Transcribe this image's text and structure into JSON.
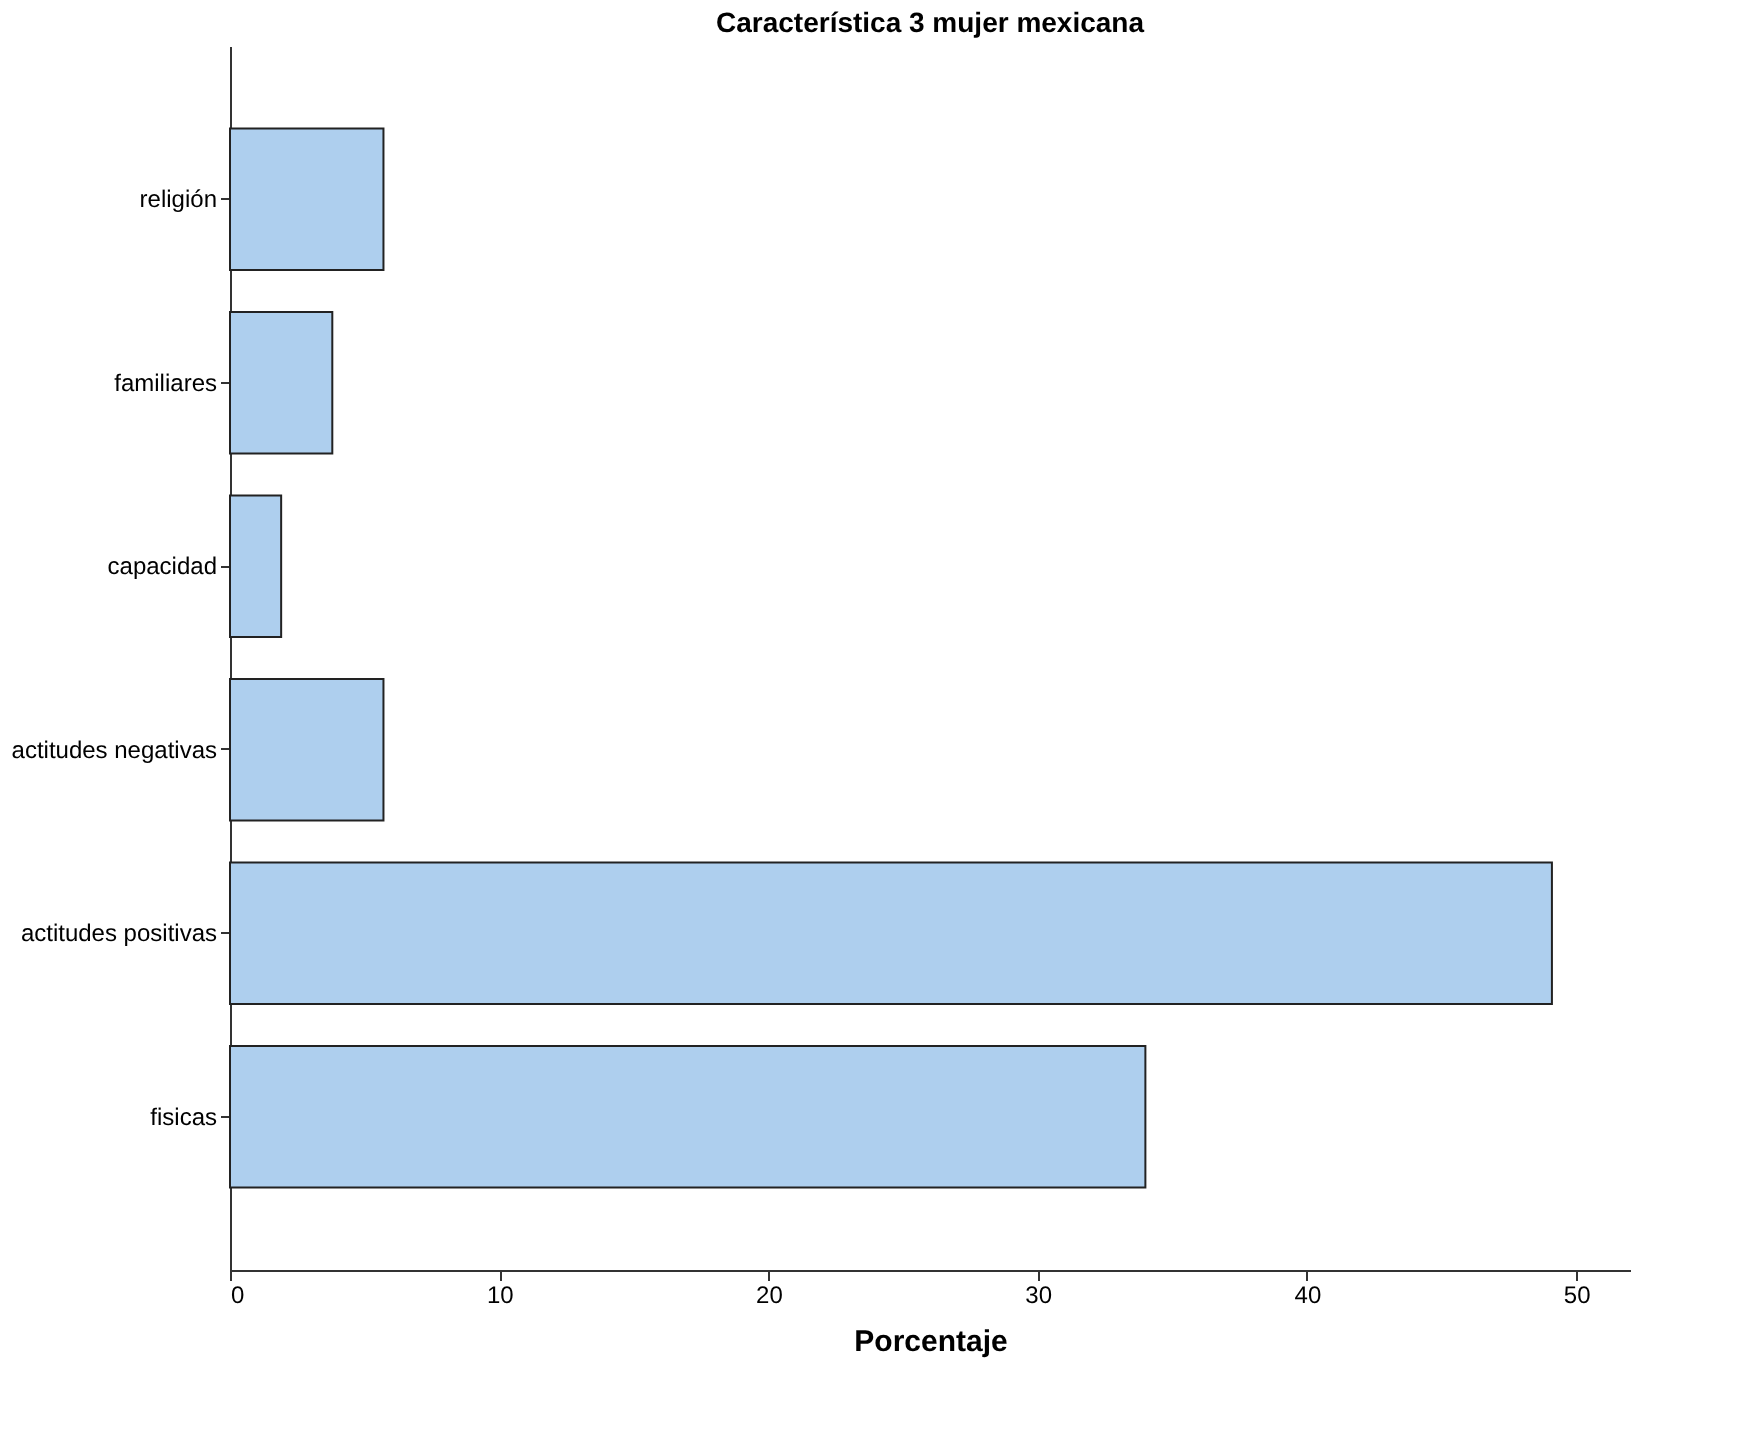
{
  "chart_data": {
    "type": "bar",
    "orientation": "horizontal",
    "title": "Característica 3 mujer mexicana",
    "xlabel": "Porcentaje",
    "categories": [
      "religión",
      "familiares",
      "capacidad",
      "actitudes negativas",
      "actitudes positivas",
      "fisicas"
    ],
    "values": [
      5.7,
      3.8,
      1.9,
      5.7,
      49.1,
      34.0
    ],
    "color": "#aecfee",
    "xlim": [
      0,
      52
    ],
    "xticks": [
      0,
      10,
      20,
      30,
      40,
      50
    ],
    "grid": false
  }
}
